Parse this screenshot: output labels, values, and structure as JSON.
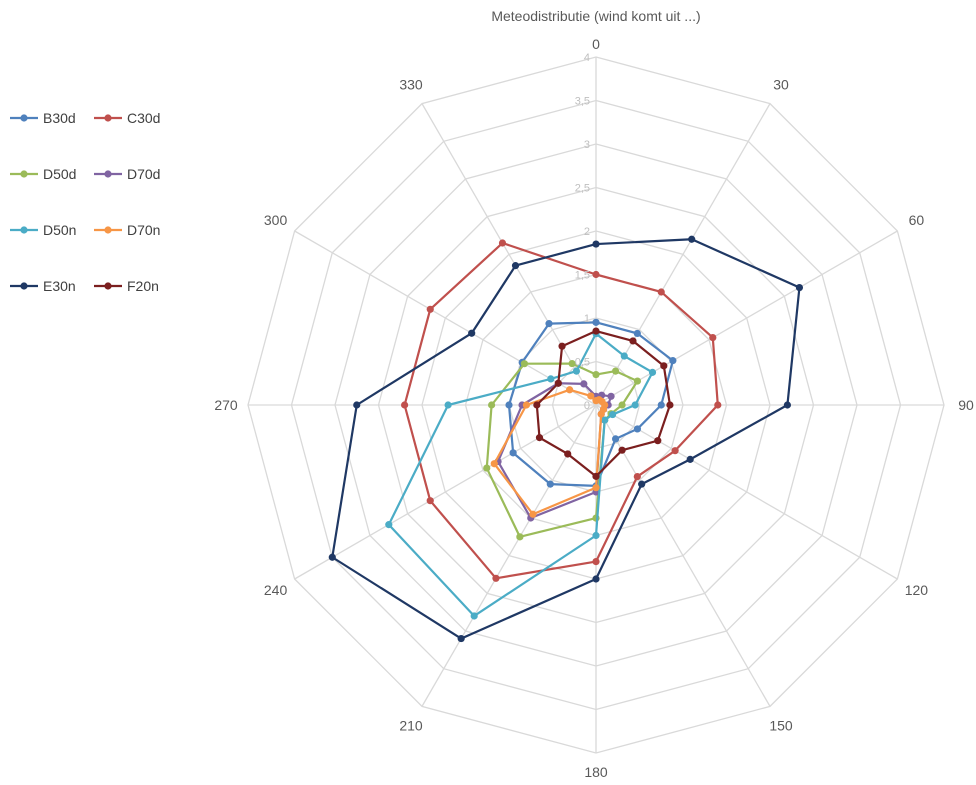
{
  "chart_data": {
    "type": "radar",
    "title": "Meteodistributie (wind komt uit ...)",
    "categories": [
      "0",
      "30",
      "60",
      "90",
      "120",
      "150",
      "180",
      "210",
      "240",
      "270",
      "300",
      "330"
    ],
    "r_ticks": [
      "0",
      "0,5",
      "1",
      "1,5",
      "2",
      "2,5",
      "3",
      "3,5",
      "4"
    ],
    "rlim": [
      0,
      4
    ],
    "grid": true,
    "legend_position": "left",
    "series": [
      {
        "name": "B30d",
        "color": "#4f81bd",
        "values": [
          0.95,
          0.95,
          1.02,
          0.75,
          0.55,
          0.45,
          0.93,
          1.05,
          1.1,
          1.0,
          0.98,
          1.08
        ]
      },
      {
        "name": "C30d",
        "color": "#c0504d",
        "values": [
          1.5,
          1.5,
          1.55,
          1.4,
          1.05,
          0.95,
          1.8,
          2.3,
          2.2,
          2.2,
          2.2,
          2.15
        ]
      },
      {
        "name": "D50d",
        "color": "#9bbb59",
        "values": [
          0.35,
          0.45,
          0.55,
          0.3,
          0.2,
          0.2,
          1.3,
          1.75,
          1.45,
          1.2,
          0.95,
          0.55
        ]
      },
      {
        "name": "D70d",
        "color": "#8064a2",
        "values": [
          0.1,
          0.13,
          0.2,
          0.14,
          0.1,
          0.12,
          1.0,
          1.5,
          1.3,
          0.85,
          0.5,
          0.28
        ]
      },
      {
        "name": "D50n",
        "color": "#4bacc6",
        "values": [
          0.82,
          0.65,
          0.75,
          0.45,
          0.22,
          0.2,
          1.5,
          2.8,
          2.75,
          1.7,
          0.6,
          0.45
        ]
      },
      {
        "name": "D70n",
        "color": "#f79646",
        "values": [
          0.05,
          0.07,
          0.08,
          0.1,
          0.1,
          0.12,
          0.95,
          1.45,
          1.35,
          0.8,
          0.35,
          0.12
        ]
      },
      {
        "name": "E30n",
        "color": "#1f3864",
        "values": [
          1.85,
          2.2,
          2.7,
          2.2,
          1.25,
          1.05,
          2.0,
          3.1,
          3.5,
          2.75,
          1.65,
          1.85
        ]
      },
      {
        "name": "F20n",
        "color": "#7b1f1f",
        "values": [
          0.85,
          0.85,
          0.9,
          0.85,
          0.82,
          0.6,
          0.82,
          0.65,
          0.75,
          0.68,
          0.5,
          0.78
        ]
      }
    ]
  }
}
